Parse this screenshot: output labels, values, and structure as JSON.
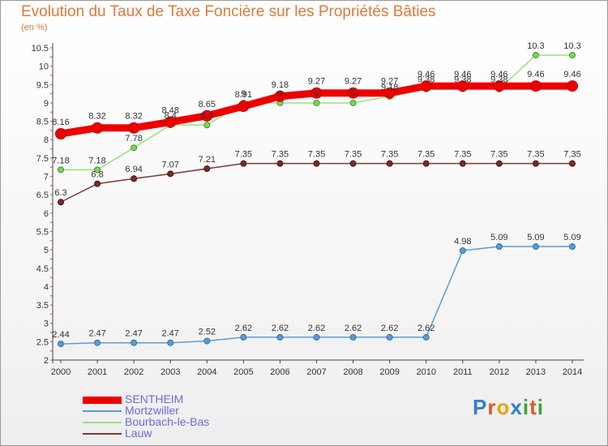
{
  "title": "Evolution du Taux de Taxe Foncière sur les Propriétés Bâties",
  "unit_label": "(en %)",
  "logo": {
    "text": "Proxiti",
    "letters": [
      "P",
      "r",
      "o",
      "x",
      "i",
      "t",
      "i"
    ],
    "letter_colors": [
      "#2f7fd4",
      "#e5542a",
      "#f0a100",
      "#2f7fd4",
      "#3ca33c",
      "#e5542a",
      "#3ca33c"
    ]
  },
  "chart_data": {
    "type": "line",
    "title": "Evolution du Taux de Taxe Foncière sur les Propriétés Bâties",
    "ylabel": "(en %)",
    "xlabel": "",
    "x": [
      "2000",
      "2001",
      "2002",
      "2003",
      "2004",
      "2005",
      "2006",
      "2007",
      "2008",
      "2009",
      "2010",
      "2011",
      "2012",
      "2013",
      "2014"
    ],
    "ylim": [
      2,
      10.5
    ],
    "yticks": [
      "2",
      "2.5",
      "3",
      "3.5",
      "4",
      "4.5",
      "5",
      "5.5",
      "6",
      "6.5",
      "7",
      "7.5",
      "8",
      "8.5",
      "9",
      "9.5",
      "10",
      "10.5"
    ],
    "grid": false,
    "legend_position": "bottom-left",
    "series": [
      {
        "name": "SENTHEIM",
        "color": "#ee0000",
        "marker_fill": "#ee0000",
        "marker_stroke": "#c00000",
        "width": 9,
        "values": [
          8.16,
          8.32,
          8.32,
          8.48,
          8.65,
          8.91,
          9.18,
          9.27,
          9.27,
          9.27,
          9.46,
          9.46,
          9.46,
          9.46,
          9.46
        ],
        "labels": [
          "8.16",
          "8.32",
          "8.32",
          "8.48",
          "8.65",
          "8.91",
          "9.18",
          "9.27",
          "9.27",
          "9.27",
          "9.46",
          "9.46",
          "9.46",
          "9.46",
          "9.46"
        ]
      },
      {
        "name": "Mortzwiller",
        "color": "#5b9bd5",
        "marker_fill": "#5b9bd5",
        "marker_stroke": "#2e6fae",
        "width": 1.5,
        "values": [
          2.44,
          2.47,
          2.47,
          2.47,
          2.52,
          2.62,
          2.62,
          2.62,
          2.62,
          2.62,
          2.62,
          4.98,
          5.09,
          5.09,
          5.09
        ],
        "labels": [
          "2.44",
          "2.47",
          "2.47",
          "2.47",
          "2.52",
          "2.62",
          "2.62",
          "2.62",
          "2.62",
          "2.62",
          "2.62",
          "4.98",
          "5.09",
          "5.09",
          "5.09"
        ]
      },
      {
        "name": "Bourbach-le-Bas",
        "color": "#9be07a",
        "marker_fill": "#7fd35a",
        "marker_stroke": "#3a9a2a",
        "width": 1.5,
        "values": [
          7.18,
          7.18,
          7.78,
          8.4,
          8.4,
          9.0,
          9.0,
          9.0,
          9.0,
          9.18,
          9.38,
          9.38,
          9.38,
          10.3,
          10.3
        ],
        "labels": [
          "7.18",
          "7.18",
          "7.78",
          "8.4",
          "8.4",
          "9",
          "9",
          "9",
          "9",
          "9.18",
          "9.38",
          "9.38",
          "9.38",
          "10.3",
          "10.3"
        ]
      },
      {
        "name": "Lauw",
        "color": "#7a3a3a",
        "marker_fill": "#7a2a2a",
        "marker_stroke": "#4a1010",
        "width": 1.5,
        "values": [
          6.3,
          6.8,
          6.94,
          7.07,
          7.21,
          7.35,
          7.35,
          7.35,
          7.35,
          7.35,
          7.35,
          7.35,
          7.35,
          7.35,
          7.35
        ],
        "labels": [
          "6.3",
          "6.8",
          "6.94",
          "7.07",
          "7.21",
          "7.35",
          "7.35",
          "7.35",
          "7.35",
          "7.35",
          "7.35",
          "7.35",
          "7.35",
          "7.35",
          "7.35"
        ]
      }
    ]
  }
}
